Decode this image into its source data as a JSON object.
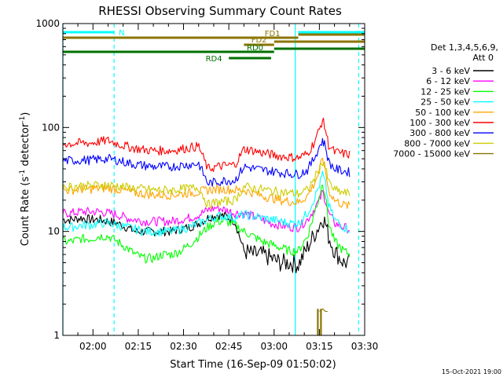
{
  "chart_data": {
    "type": "line",
    "title": "RHESSI Observing Summary Count Rates",
    "xlabel": "Start Time (16-Sep-09 01:50:02)",
    "ylabel_parts": [
      "Count Rate (s",
      "-1",
      " detector",
      "-1",
      ")"
    ],
    "yscale": "log",
    "ylim": [
      1,
      1000
    ],
    "xlim": [
      "01:50:02",
      "03:30"
    ],
    "x_tick_labels": [
      "02:00",
      "02:15",
      "02:30",
      "02:45",
      "03:00",
      "03:15",
      "03:30"
    ],
    "y_tick_labels": [
      "1",
      "10",
      "100",
      "1000"
    ],
    "grid": false,
    "legend_placement": "right",
    "legend_header": [
      "Det 1,3,4,5,6,9,",
      "Att 0"
    ],
    "timestamp": "15-Oct-2021 19:00",
    "x_minutes": [
      0,
      3,
      6,
      9,
      12,
      15,
      18,
      21,
      24,
      27,
      30,
      33,
      36,
      39,
      42,
      45,
      48,
      51,
      54,
      57,
      60,
      63,
      66,
      69,
      72,
      75,
      78,
      81,
      83,
      85,
      86,
      87,
      88,
      90,
      93,
      95
    ],
    "series": [
      {
        "name": "3 - 6 keV",
        "color": "#000000",
        "values": [
          13,
          13,
          13.5,
          13,
          13,
          12.5,
          12,
          11,
          10,
          10,
          10,
          10,
          10,
          10.5,
          11,
          12,
          13.5,
          14.5,
          14,
          12.5,
          6.5,
          6,
          6,
          5.5,
          5,
          5,
          4.8,
          7,
          9,
          11.5,
          13.5,
          12,
          9,
          6.5,
          5,
          5
        ]
      },
      {
        "name": "6 - 12 keV",
        "color": "#ff00ff",
        "values": [
          15,
          15,
          15.5,
          15.5,
          15.5,
          15,
          14.5,
          13.5,
          13,
          12.5,
          12.5,
          12.5,
          12.5,
          13,
          13.5,
          14.5,
          16,
          17,
          16,
          15,
          15,
          14,
          13,
          12,
          11.5,
          11,
          11,
          13,
          16,
          20,
          24,
          20,
          15,
          12,
          11,
          10.5
        ]
      },
      {
        "name": "12 - 25 keV",
        "color": "#00ff00",
        "values": [
          8,
          8,
          8.5,
          8.5,
          9,
          9,
          8,
          7,
          6,
          5.5,
          5.5,
          6,
          6,
          6.5,
          7.5,
          9,
          11,
          12.5,
          12.5,
          11.5,
          10,
          9,
          8,
          7.5,
          7,
          6.5,
          6.5,
          9,
          14,
          22,
          30,
          22,
          12,
          8,
          6.5,
          6
        ]
      },
      {
        "name": "25 - 50 keV",
        "color": "#00ffff",
        "values": [
          11,
          11,
          11.5,
          11.5,
          12,
          12,
          11.5,
          11,
          10.5,
          10,
          10,
          10,
          10,
          10.5,
          11,
          12,
          13,
          14,
          14,
          13.5,
          14.5,
          14,
          13.5,
          13,
          12.5,
          12,
          12,
          15,
          20,
          28,
          36,
          28,
          18,
          13,
          11,
          10.5
        ]
      },
      {
        "name": "50 - 100 keV",
        "color": "#ffa500",
        "values": [
          25,
          25,
          25.5,
          25.5,
          26,
          26,
          25.5,
          24.5,
          23.5,
          23,
          22.5,
          22.5,
          22.5,
          23,
          23.5,
          24,
          25,
          25.5,
          25.5,
          25,
          25,
          23.5,
          22,
          21,
          20,
          19.5,
          19,
          22,
          28,
          38,
          52,
          38,
          25,
          20,
          18,
          17.5
        ]
      },
      {
        "name": "100 - 300 keV",
        "color": "#ff0000",
        "values": [
          70,
          70,
          71,
          71,
          73,
          75,
          70,
          66,
          63,
          61,
          60,
          60,
          60,
          62,
          64,
          66,
          40,
          42,
          43,
          44,
          62,
          60,
          57,
          55,
          53,
          52,
          51,
          56,
          70,
          95,
          120,
          95,
          68,
          58,
          56,
          55
        ]
      },
      {
        "name": "300 - 800 keV",
        "color": "#0000ff",
        "values": [
          48,
          48,
          48.5,
          48.5,
          49.5,
          50,
          48.5,
          46,
          44,
          43,
          42,
          42,
          42,
          43,
          44,
          45,
          29,
          30,
          31,
          31,
          42,
          40.5,
          39,
          38,
          37,
          36,
          35.5,
          39,
          49,
          66,
          75,
          66,
          47,
          40,
          38,
          37
        ]
      },
      {
        "name": "800 - 7000 keV",
        "color": "#cccc00",
        "values": [
          27,
          27,
          27.5,
          27.5,
          28,
          28,
          27.5,
          26.5,
          26,
          25.5,
          25,
          25,
          25,
          25.5,
          26,
          26.5,
          18,
          19,
          19.5,
          20,
          27,
          26,
          25.5,
          24.5,
          24,
          23.5,
          23,
          25,
          31,
          40,
          47,
          40,
          30,
          25,
          23.5,
          23
        ]
      },
      {
        "name": "7000 - 15000 keV",
        "color": "#8b7500",
        "values": [
          null,
          null,
          null,
          null,
          null,
          null,
          null,
          null,
          null,
          null,
          null,
          null,
          null,
          null,
          null,
          null,
          null,
          null,
          null,
          null,
          null,
          null,
          null,
          null,
          null,
          null,
          null,
          null,
          null,
          1.7,
          1.8,
          1.7,
          null,
          null,
          null,
          null
        ]
      }
    ],
    "attenuator_bars": [
      {
        "label": "N",
        "color": "#00ffff",
        "segments": [
          [
            "01:50:02",
            "02:07"
          ],
          [
            "03:08",
            "03:30"
          ]
        ]
      },
      {
        "label": "FD1",
        "color": "#8b7500",
        "segments": [
          [
            "01:50:02",
            "03:08"
          ],
          [
            "03:08",
            "03:30"
          ]
        ]
      },
      {
        "label": "FD2",
        "color": "#8b7500",
        "segments": [
          [
            "02:50",
            "03:00"
          ],
          [
            "03:00",
            "03:30"
          ]
        ]
      },
      {
        "label": "RD0",
        "color": "#007000",
        "segments": [
          [
            "01:50:02",
            "03:00"
          ],
          [
            "03:00",
            "03:30"
          ]
        ]
      },
      {
        "label": "RD4",
        "color": "#007000",
        "segments": [
          [
            "02:45",
            "02:59"
          ]
        ]
      }
    ],
    "vertical_markers": [
      {
        "color": "#00ffff",
        "style": "dashed",
        "times": [
          "02:07",
          "03:28"
        ]
      },
      {
        "color": "#00ffff",
        "style": "solid",
        "times": [
          "01:50:02",
          "03:07"
        ]
      }
    ]
  }
}
